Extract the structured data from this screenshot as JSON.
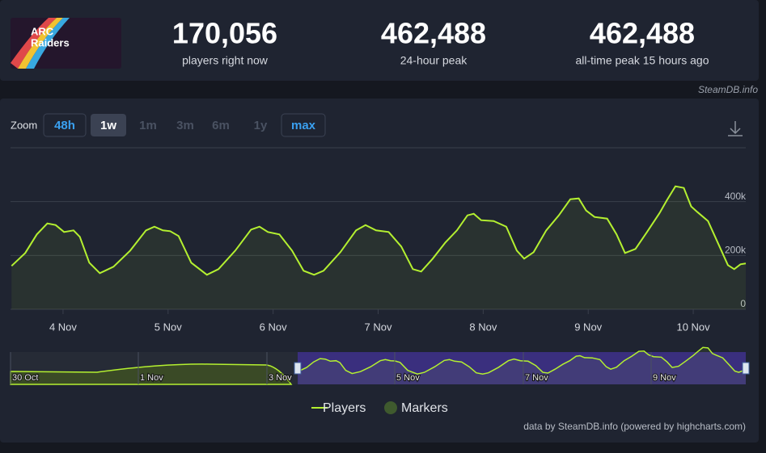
{
  "header": {
    "logo_lines": [
      "ARC",
      "Raiders"
    ],
    "stats": [
      {
        "value": "170,056",
        "label": "players right now"
      },
      {
        "value": "462,488",
        "label": "24-hour peak"
      },
      {
        "value": "462,488",
        "label": "all-time peak 15 hours ago"
      }
    ],
    "watermark": "SteamDB.info"
  },
  "zoom": {
    "label": "Zoom",
    "buttons": [
      "48h",
      "1w",
      "1m",
      "3m",
      "6m",
      "1y",
      "max"
    ]
  },
  "chart_data": {
    "type": "line",
    "color": "#b4f030",
    "grid": true,
    "x": [
      3.51,
      3.64,
      3.75,
      3.85,
      3.93,
      4.01,
      4.1,
      4.16,
      4.25,
      4.35,
      4.48,
      4.64,
      4.79,
      4.87,
      4.95,
      5.02,
      5.1,
      5.22,
      5.37,
      5.48,
      5.64,
      5.79,
      5.87,
      5.95,
      6.06,
      6.18,
      6.29,
      6.39,
      6.48,
      6.64,
      6.79,
      6.88,
      6.98,
      7.1,
      7.22,
      7.33,
      7.41,
      7.52,
      7.64,
      7.75,
      7.85,
      7.91,
      7.98,
      8.1,
      8.22,
      8.32,
      8.39,
      8.48,
      8.6,
      8.72,
      8.83,
      8.91,
      8.98,
      9.06,
      9.18,
      9.27,
      9.35,
      9.45,
      9.56,
      9.68,
      9.75,
      9.83,
      9.91,
      9.98,
      10.04,
      10.14,
      10.24,
      10.33,
      10.39,
      10.45,
      10.5
    ],
    "series": [
      {
        "name": "Players",
        "color": "#b4f030",
        "values": [
          161000,
          209000,
          278000,
          319000,
          313000,
          287000,
          293000,
          269000,
          173000,
          134000,
          158000,
          218000,
          293000,
          307000,
          293000,
          290000,
          272000,
          173000,
          128000,
          149000,
          218000,
          296000,
          307000,
          287000,
          278000,
          218000,
          143000,
          128000,
          143000,
          212000,
          293000,
          313000,
          293000,
          287000,
          233000,
          149000,
          140000,
          188000,
          248000,
          293000,
          349000,
          355000,
          331000,
          328000,
          307000,
          218000,
          188000,
          212000,
          293000,
          349000,
          409000,
          412000,
          367000,
          343000,
          337000,
          278000,
          209000,
          224000,
          287000,
          358000,
          406000,
          457000,
          451000,
          382000,
          361000,
          328000,
          242000,
          164000,
          149000,
          167000,
          170000
        ]
      }
    ],
    "xlim": [
      3.5,
      10.5
    ],
    "xticks": [
      {
        "value": 4,
        "label": "4 Nov"
      },
      {
        "value": 5,
        "label": "5 Nov"
      },
      {
        "value": 6,
        "label": "6 Nov"
      },
      {
        "value": 7,
        "label": "7 Nov"
      },
      {
        "value": 8,
        "label": "8 Nov"
      },
      {
        "value": 9,
        "label": "9 Nov"
      },
      {
        "value": 10,
        "label": "10 Nov"
      }
    ],
    "ylim": [
      0,
      600000
    ],
    "yticks": [
      0,
      {
        "value": 200000,
        "label": "200k"
      },
      {
        "value": 400000,
        "label": "400k"
      }
    ],
    "navigator_labels": [
      "30 Oct",
      "1 Nov",
      "3 Nov",
      "5 Nov",
      "7 Nov",
      "9 Nov"
    ],
    "legend": [
      "Players",
      "Markers"
    ],
    "credits": "data by SteamDB.info (powered by highcharts.com)"
  }
}
